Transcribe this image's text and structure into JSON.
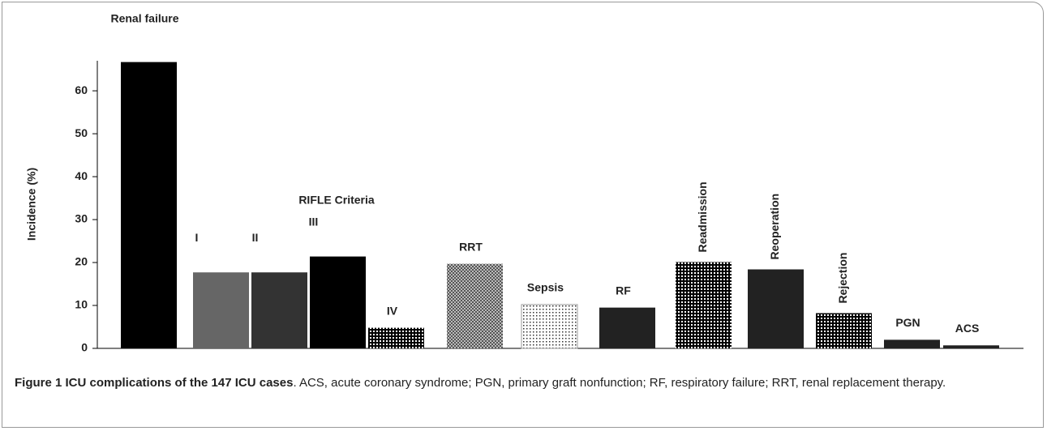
{
  "chart_data": {
    "type": "bar",
    "ylabel": "Incidence (%)",
    "annotation": "RIFLE Criteria",
    "categories": [
      "Renal failure",
      "I",
      "II",
      "III",
      "IV",
      "RRT",
      "Sepsis",
      "RF",
      "Readmission",
      "Reoperation",
      "Rejection",
      "PGN",
      "ACS"
    ],
    "values": [
      66.7,
      17.7,
      17.7,
      21.4,
      4.8,
      19.7,
      10.2,
      9.5,
      20.1,
      18.4,
      8.2,
      2.0,
      0.7
    ],
    "colors": [
      "#000000",
      "#666666",
      "#333333",
      "#000000",
      "#111111",
      "#777777",
      "#bbbbbb",
      "#222222",
      "#111111",
      "#222222",
      "#111111",
      "#222222",
      "#222222"
    ],
    "ylim": [
      0,
      67
    ],
    "yticks": [
      0,
      10,
      20,
      30,
      40,
      50,
      60
    ]
  },
  "caption": {
    "label": "Figure 1 ICU complications of the 147 ICU cases",
    "text": ". ACS, acute coronary syndrome; PGN, primary graft nonfunction; RF, respiratory failure; RRT, renal replacement therapy."
  }
}
